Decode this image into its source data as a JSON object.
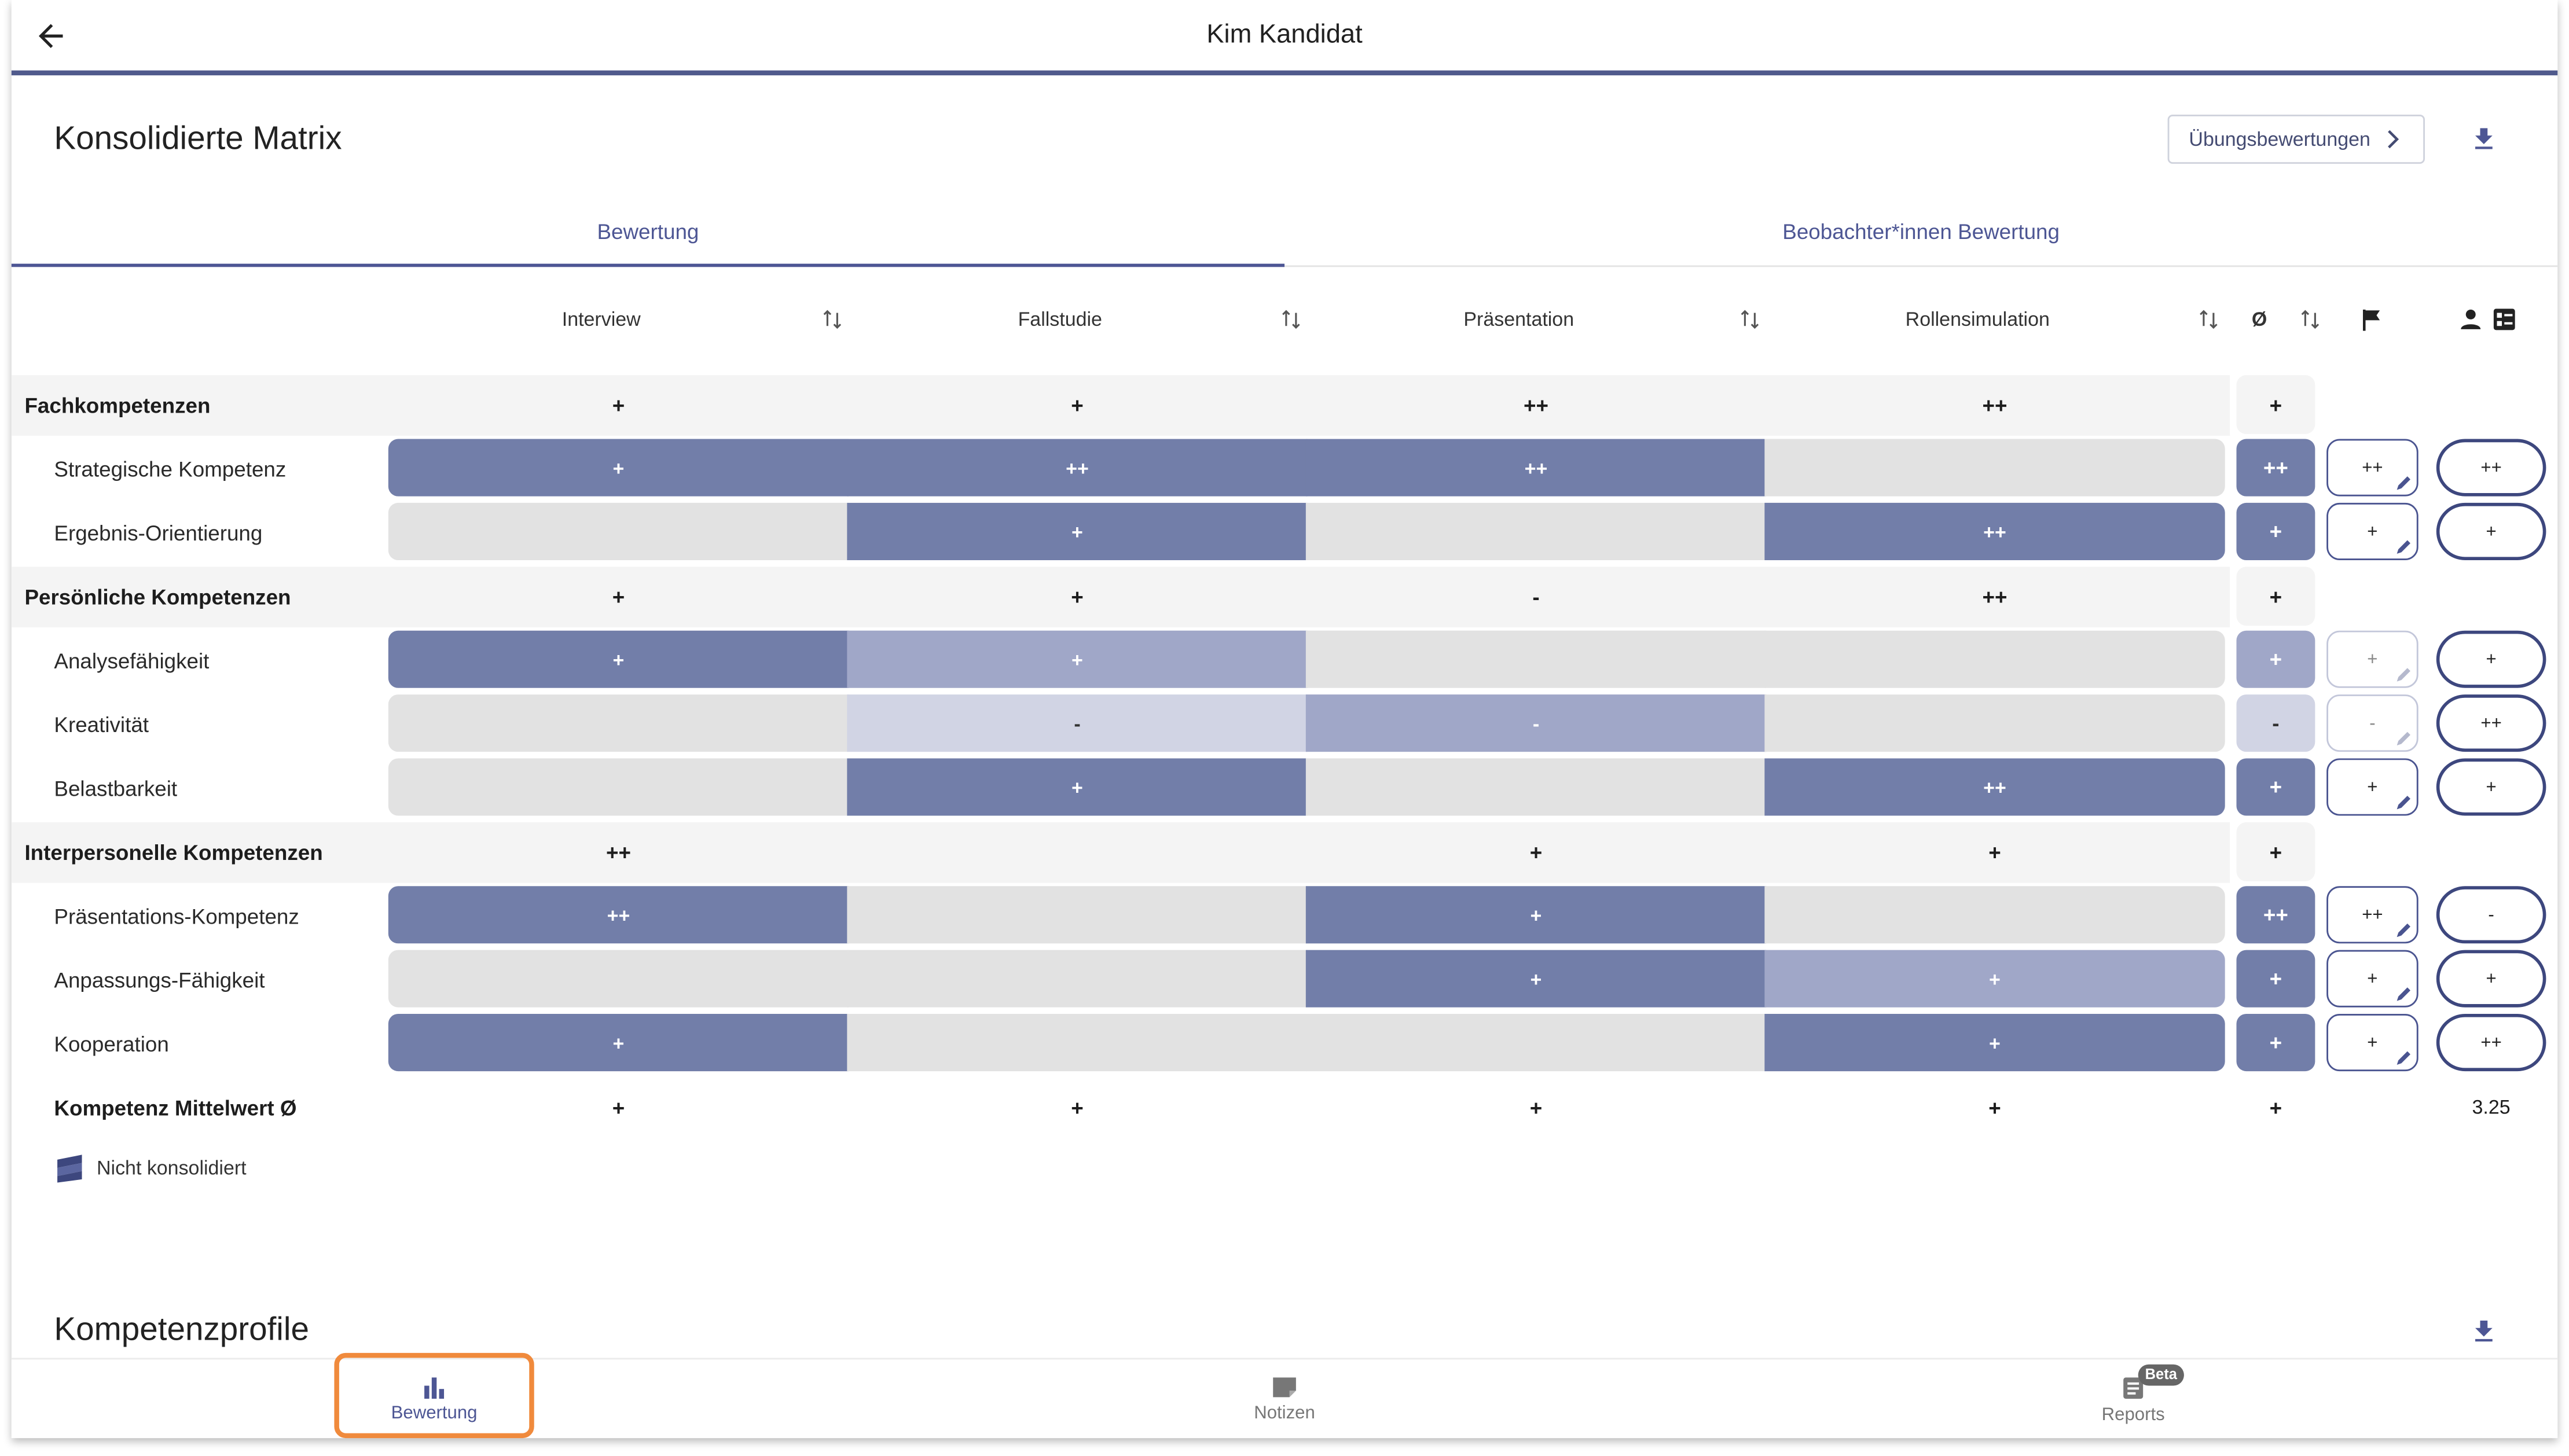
{
  "header": {
    "title": "Kim Kandidat"
  },
  "matrix": {
    "title": "Konsolidierte Matrix",
    "exercise_button": "Übungsbewertungen",
    "tabs": [
      "Bewertung",
      "Beobachter*innen Bewertung"
    ],
    "columns": [
      "Interview",
      "Fallstudie",
      "Präsentation",
      "Rollensimulation"
    ],
    "avg_symbol": "Ø",
    "colors": {
      "high": "#727ea9",
      "mid": "#a0a7c8",
      "low": "#d1d4e4",
      "none": "#e2e2e2",
      "group_bg": "#f4f4f4",
      "accent": "#4d5694"
    },
    "groups": [
      {
        "name": "Fachkompetenzen",
        "values": [
          "+",
          "+",
          "++",
          "++"
        ],
        "avg": "+",
        "rows": [
          {
            "name": "Strategische Kompetenz",
            "cells": [
              {
                "v": "+",
                "s": "high"
              },
              {
                "v": "++",
                "s": "high"
              },
              {
                "v": "++",
                "s": "high"
              },
              {
                "v": "",
                "s": "none"
              }
            ],
            "avg": "++",
            "avg_shade": "high",
            "observer": "++",
            "observer_faded": false,
            "final": "++"
          },
          {
            "name": "Ergebnis-Orientierung",
            "cells": [
              {
                "v": "",
                "s": "none"
              },
              {
                "v": "+",
                "s": "high"
              },
              {
                "v": "",
                "s": "none"
              },
              {
                "v": "++",
                "s": "high"
              }
            ],
            "avg": "+",
            "avg_shade": "high",
            "observer": "+",
            "observer_faded": false,
            "final": "+"
          }
        ]
      },
      {
        "name": "Persönliche Kompetenzen",
        "values": [
          "+",
          "+",
          "-",
          "++"
        ],
        "avg": "+",
        "rows": [
          {
            "name": "Analysefähigkeit",
            "cells": [
              {
                "v": "+",
                "s": "high"
              },
              {
                "v": "+",
                "s": "mid"
              },
              {
                "v": "",
                "s": "none"
              },
              {
                "v": "",
                "s": "none"
              }
            ],
            "avg": "+",
            "avg_shade": "mid",
            "observer": "+",
            "observer_faded": true,
            "final": "+"
          },
          {
            "name": "Kreativität",
            "cells": [
              {
                "v": "",
                "s": "none"
              },
              {
                "v": "-",
                "s": "low"
              },
              {
                "v": "-",
                "s": "mid"
              },
              {
                "v": "",
                "s": "none"
              }
            ],
            "avg": "-",
            "avg_shade": "low",
            "observer": "-",
            "observer_faded": true,
            "final": "++"
          },
          {
            "name": "Belastbarkeit",
            "cells": [
              {
                "v": "",
                "s": "none"
              },
              {
                "v": "+",
                "s": "high"
              },
              {
                "v": "",
                "s": "none"
              },
              {
                "v": "++",
                "s": "high"
              }
            ],
            "avg": "+",
            "avg_shade": "high",
            "observer": "+",
            "observer_faded": false,
            "final": "+"
          }
        ]
      },
      {
        "name": "Interpersonelle Kompetenzen",
        "values": [
          "++",
          "",
          "+",
          "+"
        ],
        "avg": "+",
        "rows": [
          {
            "name": "Präsentations-Kompetenz",
            "cells": [
              {
                "v": "++",
                "s": "high"
              },
              {
                "v": "",
                "s": "none"
              },
              {
                "v": "+",
                "s": "high"
              },
              {
                "v": "",
                "s": "none"
              }
            ],
            "avg": "++",
            "avg_shade": "high",
            "observer": "++",
            "observer_faded": false,
            "final": "-"
          },
          {
            "name": "Anpassungs-Fähigkeit",
            "cells": [
              {
                "v": "",
                "s": "none"
              },
              {
                "v": "",
                "s": "none"
              },
              {
                "v": "+",
                "s": "high"
              },
              {
                "v": "+",
                "s": "mid"
              }
            ],
            "avg": "+",
            "avg_shade": "high",
            "observer": "+",
            "observer_faded": false,
            "final": "+"
          },
          {
            "name": "Kooperation",
            "cells": [
              {
                "v": "+",
                "s": "high"
              },
              {
                "v": "",
                "s": "none"
              },
              {
                "v": "",
                "s": "none"
              },
              {
                "v": "+",
                "s": "high"
              }
            ],
            "avg": "+",
            "avg_shade": "high",
            "observer": "+",
            "observer_faded": false,
            "final": "++"
          }
        ]
      }
    ],
    "mean": {
      "label": "Kompetenz Mittelwert Ø",
      "values": [
        "+",
        "+",
        "+",
        "+"
      ],
      "avg": "+",
      "score": "3.25"
    },
    "legend": "Nicht konsolidiert"
  },
  "profiles": {
    "title": "Kompetenzprofile"
  },
  "bottom_nav": [
    {
      "label": "Bewertung",
      "icon": "bar-chart-icon",
      "active": true
    },
    {
      "label": "Notizen",
      "icon": "note-icon",
      "active": false
    },
    {
      "label": "Reports",
      "icon": "report-icon",
      "active": false,
      "badge": "Beta"
    }
  ]
}
